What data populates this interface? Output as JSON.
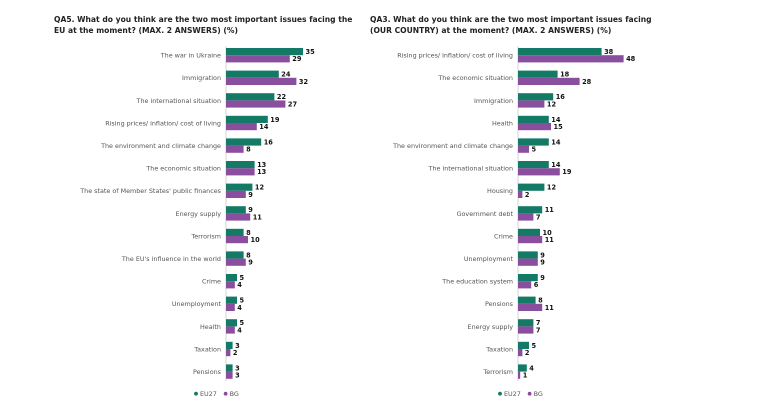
{
  "colors": {
    "eu27": "#137a65",
    "bg": "#8a4e9e"
  },
  "chart_data": [
    {
      "type": "bar",
      "orientation": "horizontal",
      "title": "QA5. What do you think are the two most important issues facing the EU at the moment? (MAX. 2 ANSWERS) (%)",
      "categories": [
        "The war in Ukraine",
        "Immigration",
        "The international situation",
        "Rising prices/ inflation/ cost of living",
        "The environment and climate change",
        "The economic situation",
        "The state of Member States' public finances",
        "Energy supply",
        "Terrorism",
        "The EU's influence in the world",
        "Crime",
        "Unemployment",
        "Health",
        "Taxation",
        "Pensions"
      ],
      "series": [
        {
          "name": "EU27",
          "values": [
            35,
            24,
            22,
            19,
            16,
            13,
            12,
            9,
            8,
            8,
            5,
            5,
            5,
            3,
            3
          ]
        },
        {
          "name": "BG",
          "values": [
            29,
            32,
            27,
            14,
            8,
            13,
            9,
            11,
            10,
            9,
            4,
            4,
            4,
            2,
            3
          ]
        }
      ],
      "legend": [
        "EU27",
        "BG"
      ]
    },
    {
      "type": "bar",
      "orientation": "horizontal",
      "title": "QA3. What do you think are the two most important issues facing (OUR COUNTRY) at the moment? (MAX. 2 ANSWERS) (%)",
      "categories": [
        "Rising prices/ inflation/ cost of living",
        "The economic situation",
        "Immigration",
        "Health",
        "The environment and climate change",
        "The international situation",
        "Housing",
        "Government debt",
        "Crime",
        "Unemployment",
        "The education system",
        "Pensions",
        "Energy supply",
        "Taxation",
        "Terrorism"
      ],
      "series": [
        {
          "name": "EU27",
          "values": [
            38,
            18,
            16,
            14,
            14,
            14,
            12,
            11,
            10,
            9,
            9,
            8,
            7,
            5,
            4
          ]
        },
        {
          "name": "BG",
          "values": [
            48,
            28,
            12,
            15,
            5,
            19,
            2,
            7,
            11,
            9,
            6,
            11,
            7,
            2,
            1
          ]
        }
      ],
      "legend": [
        "EU27",
        "BG"
      ]
    }
  ]
}
